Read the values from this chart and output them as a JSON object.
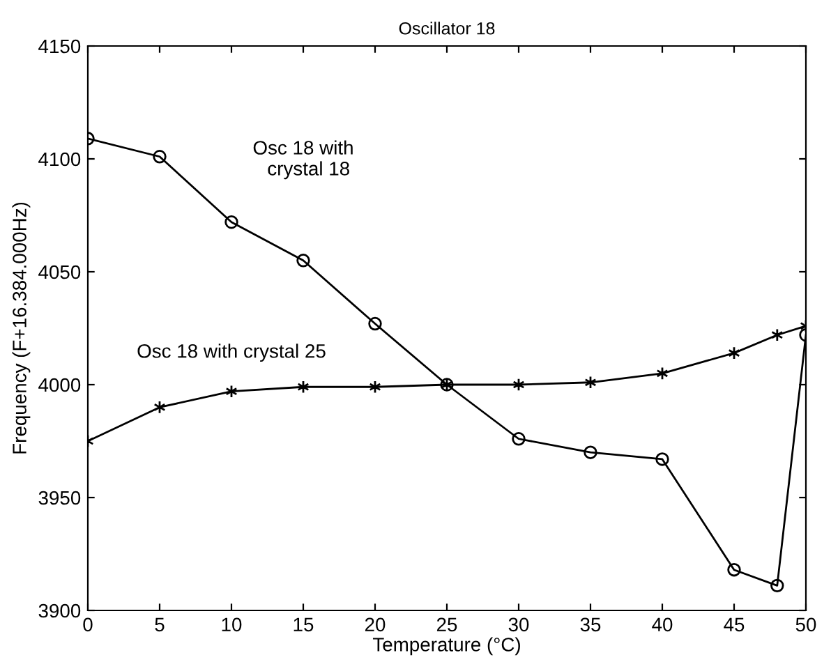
{
  "chart_data": {
    "type": "line",
    "title": "Oscillator 18",
    "xlabel": "Temperature (°C)",
    "ylabel": "Frequency (F+16.384.000Hz)",
    "x": [
      0,
      5,
      10,
      15,
      20,
      25,
      30,
      35,
      40,
      45,
      48,
      50
    ],
    "series": [
      {
        "name": "Osc 18 with\n  crystal 18",
        "color": "#000000",
        "marker": "circle",
        "values": [
          4109,
          4101,
          4072,
          4055,
          4027,
          4000,
          3976,
          3970,
          3967,
          3918,
          3911,
          4022
        ]
      },
      {
        "name": "Osc 18 with crystal 25",
        "color": "#000000",
        "marker": "cross",
        "values": [
          3975,
          3990,
          3997,
          3999,
          3999,
          4000,
          4000,
          4001,
          4005,
          4014,
          4022,
          4026
        ]
      }
    ],
    "xlim": [
      0,
      50
    ],
    "xticks": [
      0,
      5,
      10,
      15,
      20,
      25,
      30,
      35,
      40,
      45,
      50
    ],
    "ylim": [
      3900,
      4150
    ],
    "yticks": [
      3900,
      3950,
      4000,
      4050,
      4100,
      4150
    ],
    "grid": false,
    "legend": false,
    "line_style": "solid"
  }
}
